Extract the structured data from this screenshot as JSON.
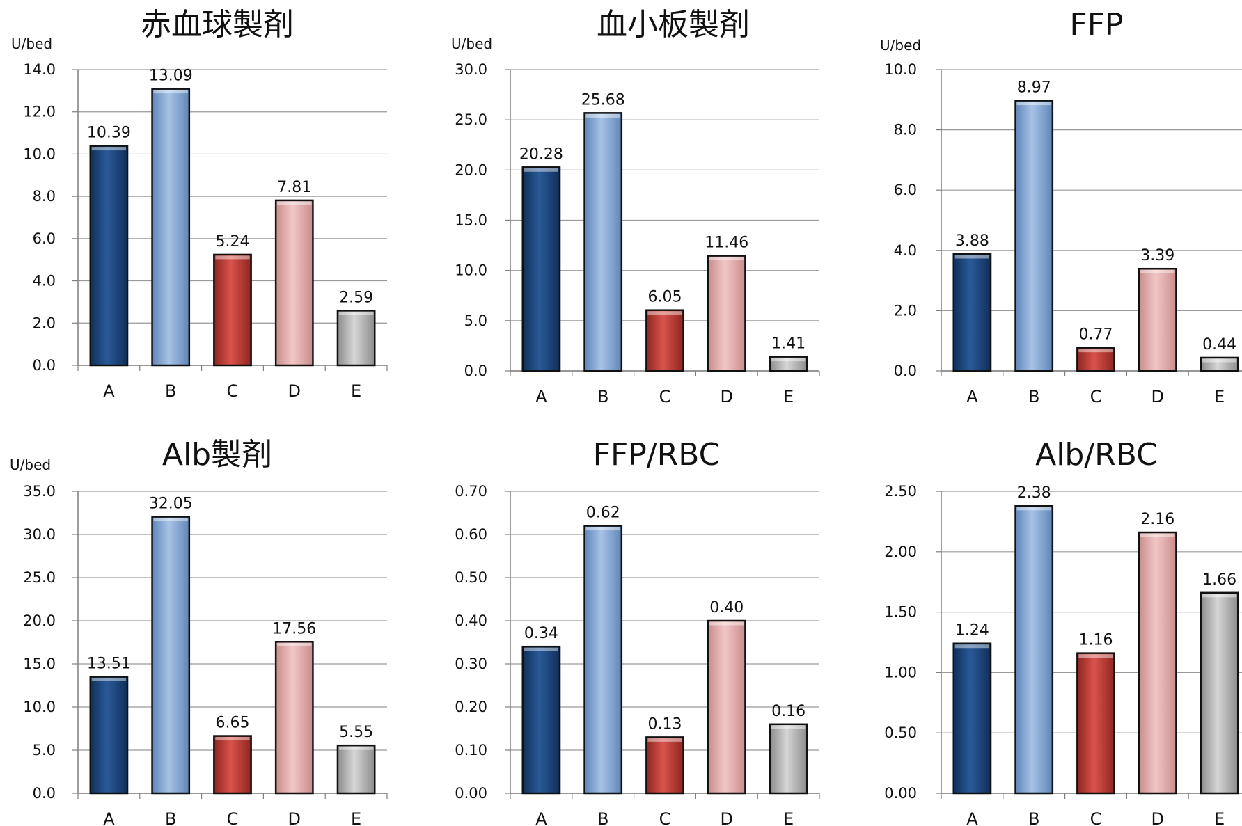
{
  "colors": {
    "A": "#1f4a82",
    "B": "#85aad6",
    "C": "#c0413a",
    "D": "#e3aeae",
    "E": "#b3b3b3",
    "grid": "#9a9a9a",
    "axis": "#7f7f7f"
  },
  "chart_data": [
    {
      "type": "bar",
      "title": "赤血球製剤",
      "ylabel": "U/bed",
      "categories": [
        "A",
        "B",
        "C",
        "D",
        "E"
      ],
      "values": [
        10.39,
        13.09,
        5.24,
        7.81,
        2.59
      ],
      "value_labels": [
        "10.39",
        "13.09",
        "5.24",
        "7.81",
        "2.59"
      ],
      "ylim": [
        0,
        14
      ],
      "yticks": [
        0,
        2,
        4,
        6,
        8,
        10,
        12,
        14
      ],
      "ytick_labels": [
        "0.0",
        "2.0",
        "4.0",
        "6.0",
        "8.0",
        "10.0",
        "12.0",
        "14.0"
      ],
      "grid": true
    },
    {
      "type": "bar",
      "title": "血小板製剤",
      "ylabel": "U/bed",
      "categories": [
        "A",
        "B",
        "C",
        "D",
        "E"
      ],
      "values": [
        20.28,
        25.68,
        6.05,
        11.46,
        1.41
      ],
      "value_labels": [
        "20.28",
        "25.68",
        "6.05",
        "11.46",
        "1.41"
      ],
      "ylim": [
        0,
        30
      ],
      "yticks": [
        0,
        5,
        10,
        15,
        20,
        25,
        30
      ],
      "ytick_labels": [
        "0.0",
        "5.0",
        "10.0",
        "15.0",
        "20.0",
        "25.0",
        "30.0"
      ],
      "grid": true
    },
    {
      "type": "bar",
      "title": "FFP",
      "ylabel": "U/bed",
      "categories": [
        "A",
        "B",
        "C",
        "D",
        "E"
      ],
      "values": [
        3.88,
        8.97,
        0.77,
        3.39,
        0.44
      ],
      "value_labels": [
        "3.88",
        "8.97",
        "0.77",
        "3.39",
        "0.44"
      ],
      "ylim": [
        0,
        10
      ],
      "yticks": [
        0,
        2,
        4,
        6,
        8,
        10
      ],
      "ytick_labels": [
        "0.0",
        "2.0",
        "4.0",
        "6.0",
        "8.0",
        "10.0"
      ],
      "grid": true
    },
    {
      "type": "bar",
      "title": "Alb製剤",
      "ylabel": "U/bed",
      "categories": [
        "A",
        "B",
        "C",
        "D",
        "E"
      ],
      "values": [
        13.51,
        32.05,
        6.65,
        17.56,
        5.55
      ],
      "value_labels": [
        "13.51",
        "32.05",
        "6.65",
        "17.56",
        "5.55"
      ],
      "ylim": [
        0,
        35
      ],
      "yticks": [
        0,
        5,
        10,
        15,
        20,
        25,
        30,
        35
      ],
      "ytick_labels": [
        "0.0",
        "5.0",
        "10.0",
        "15.0",
        "20.0",
        "25.0",
        "30.0",
        "35.0"
      ],
      "grid": true
    },
    {
      "type": "bar",
      "title": "FFP/RBC",
      "ylabel": "",
      "categories": [
        "A",
        "B",
        "C",
        "D",
        "E"
      ],
      "values": [
        0.34,
        0.62,
        0.13,
        0.4,
        0.16
      ],
      "value_labels": [
        "0.34",
        "0.62",
        "0.13",
        "0.40",
        "0.16"
      ],
      "ylim": [
        0,
        0.7
      ],
      "yticks": [
        0,
        0.1,
        0.2,
        0.3,
        0.4,
        0.5,
        0.6,
        0.7
      ],
      "ytick_labels": [
        "0.00",
        "0.10",
        "0.20",
        "0.30",
        "0.40",
        "0.50",
        "0.60",
        "0.70"
      ],
      "grid": true
    },
    {
      "type": "bar",
      "title": "Alb/RBC",
      "ylabel": "",
      "categories": [
        "A",
        "B",
        "C",
        "D",
        "E"
      ],
      "values": [
        1.24,
        2.38,
        1.16,
        2.16,
        1.66
      ],
      "value_labels": [
        "1.24",
        "2.38",
        "1.16",
        "2.16",
        "1.66"
      ],
      "ylim": [
        0,
        2.5
      ],
      "yticks": [
        0,
        0.5,
        1,
        1.5,
        2,
        2.5
      ],
      "ytick_labels": [
        "0.00",
        "0.50",
        "1.00",
        "1.50",
        "2.00",
        "2.50"
      ],
      "grid": true
    }
  ]
}
